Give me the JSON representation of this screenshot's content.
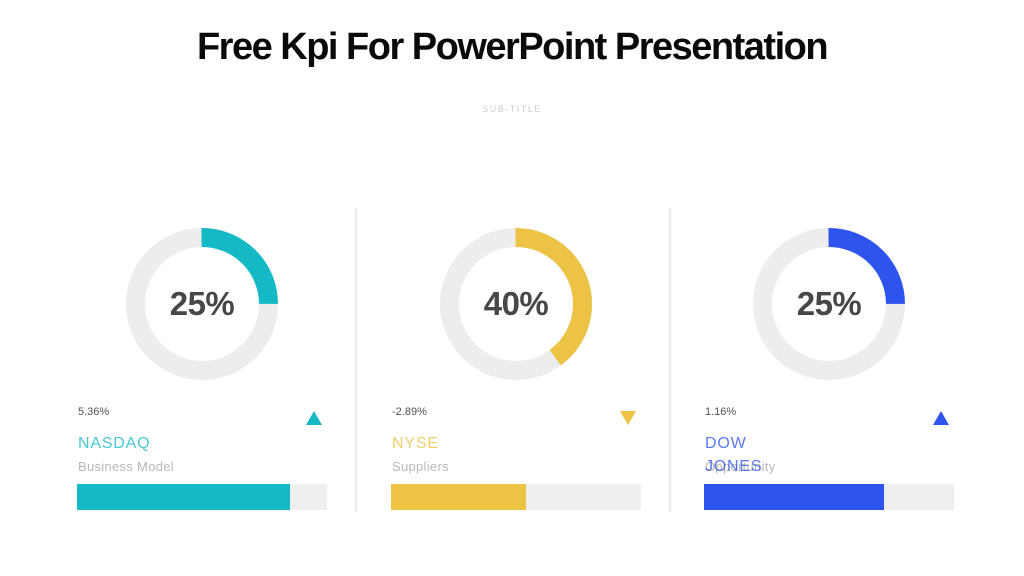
{
  "slide": {
    "title": "Free Kpi For PowerPoint Presentation",
    "subtitle": "SUB-TITLE"
  },
  "colors": {
    "teal_accent": "#15b8c5",
    "yellow_accent": "#ecc344",
    "blue_accent": "#2d54ec",
    "ring_track": "#ededed",
    "bar_track": "#efefef",
    "percent_text": "#47474a",
    "change_text": "#515254",
    "muted_text": "#b8b8b8",
    "title_text": "#0a0a0a",
    "subtitle_text": "#cdcdcd",
    "divider": "#ebebeb"
  },
  "cards": [
    {
      "percent": "25%",
      "percent_value": 25,
      "change": "5.36%",
      "direction": "up",
      "label": "NASDAQ",
      "sublabel": "Business Model",
      "accent": "#15b8c5",
      "bar_fill_percent": 85
    },
    {
      "percent": "40%",
      "percent_value": 40,
      "change": "-2.89%",
      "direction": "down",
      "label": "NYSE",
      "sublabel": "Suppliers",
      "accent": "#ecc344",
      "bar_fill_percent": 54
    },
    {
      "percent": "25%",
      "percent_value": 25,
      "change": "1.16%",
      "direction": "up",
      "label": "DOW JONES",
      "label_lines": [
        "DOW",
        "JONES"
      ],
      "sublabel": "Opportunity",
      "accent": "#2d54ec",
      "bar_fill_percent": 72
    }
  ],
  "chart_data": [
    {
      "type": "donut",
      "title": "NASDAQ",
      "subtitle": "Business Model",
      "value_percent": 25,
      "change_percent": 5.36,
      "change_direction": "up",
      "progress_bar_percent": 85,
      "color": "#15b8c5"
    },
    {
      "type": "donut",
      "title": "NYSE",
      "subtitle": "Suppliers",
      "value_percent": 40,
      "change_percent": -2.89,
      "change_direction": "down",
      "progress_bar_percent": 54,
      "color": "#ecc344"
    },
    {
      "type": "donut",
      "title": "DOW JONES",
      "subtitle": "Opportunity",
      "value_percent": 25,
      "change_percent": 1.16,
      "change_direction": "up",
      "progress_bar_percent": 72,
      "color": "#2d54ec"
    }
  ]
}
